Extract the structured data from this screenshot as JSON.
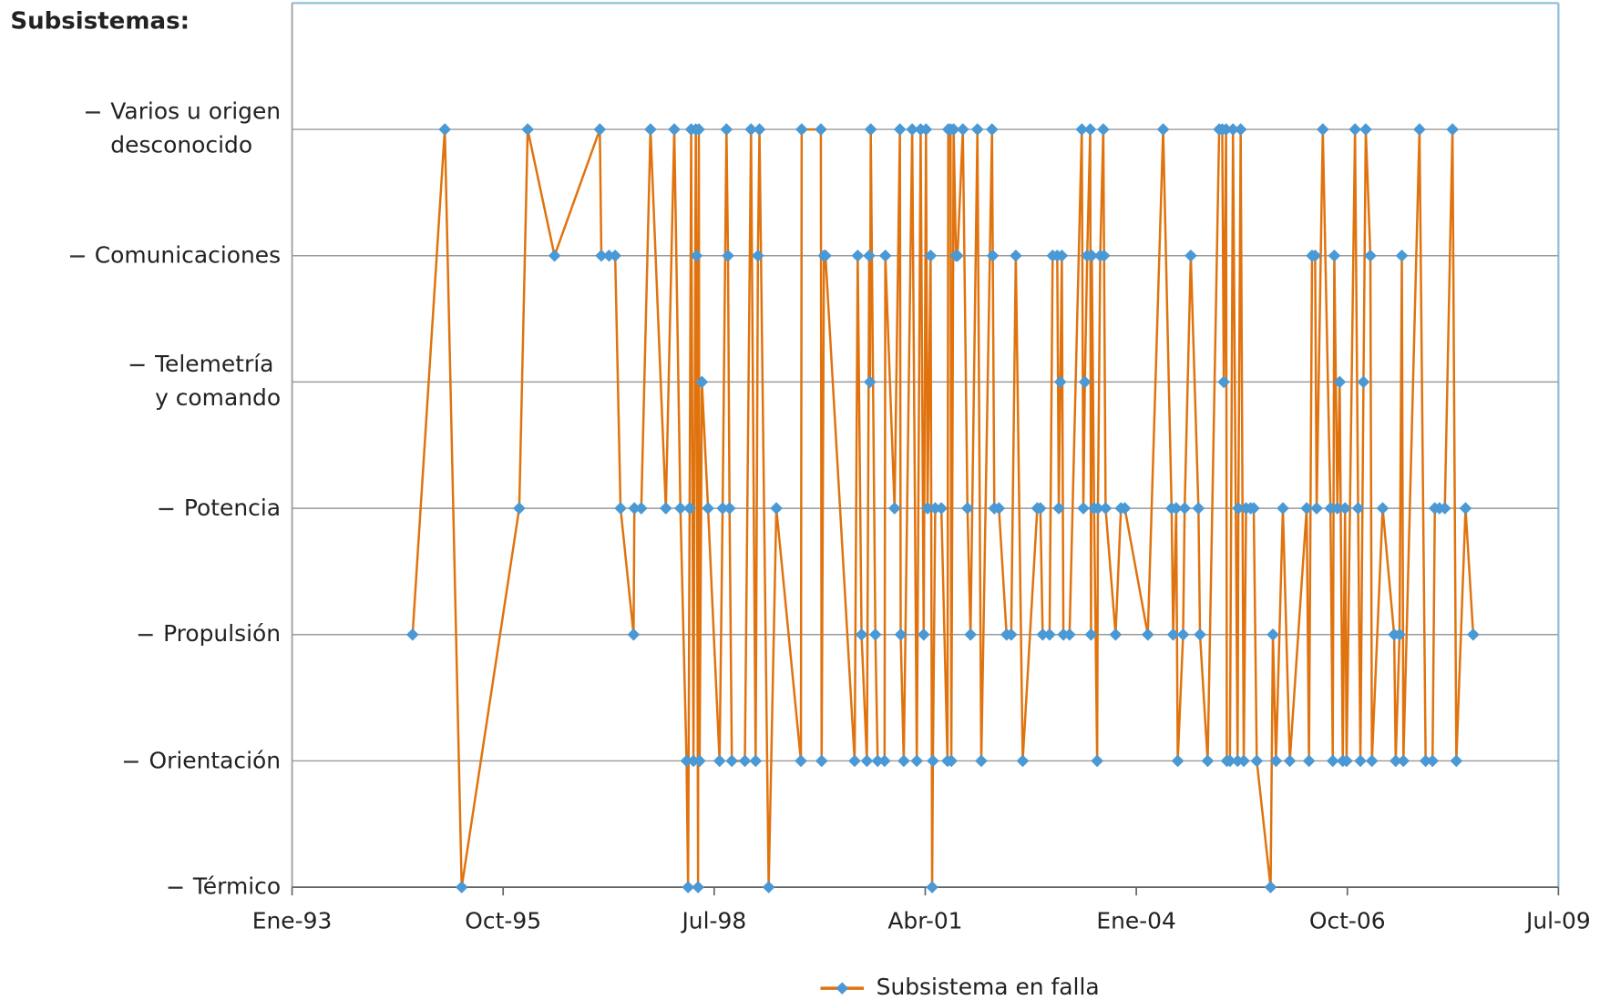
{
  "chart_data": {
    "type": "line",
    "title": "Subsistemas:",
    "x": [
      1994.57,
      1994.99,
      1995.21,
      1995.96,
      1996.07,
      1996.42,
      1997.01,
      1997.03,
      1997.13,
      1997.21,
      1997.28,
      1997.45,
      1997.46,
      1997.55,
      1997.67,
      1997.87,
      1997.98,
      1998.06,
      1998.14,
      1998.16,
      1998.18,
      1998.2,
      1998.23,
      1998.26,
      1998.27,
      1998.29,
      1998.3,
      1998.31,
      1998.34,
      1998.42,
      1998.57,
      1998.61,
      1998.66,
      1998.68,
      1998.7,
      1998.73,
      1998.9,
      1998.98,
      1999.04,
      1999.07,
      1999.09,
      1999.21,
      1999.31,
      1999.63,
      1999.64,
      1999.89,
      1999.9,
      1999.93,
      1999.95,
      2000.33,
      2000.37,
      2000.42,
      2000.49,
      2000.52,
      2000.53,
      2000.54,
      2000.6,
      2000.63,
      2000.72,
      2000.73,
      2000.85,
      2000.92,
      2000.93,
      2000.97,
      2001.08,
      2001.14,
      2001.19,
      2001.23,
      2001.26,
      2001.28,
      2001.32,
      2001.34,
      2001.35,
      2001.38,
      2001.46,
      2001.54,
      2001.55,
      2001.58,
      2001.59,
      2001.62,
      2001.65,
      2001.67,
      2001.74,
      2001.8,
      2001.84,
      2001.93,
      2001.98,
      2002.12,
      2002.13,
      2002.15,
      2002.21,
      2002.31,
      2002.37,
      2002.43,
      2002.52,
      2002.71,
      2002.75,
      2002.78,
      2002.87,
      2002.91,
      2002.97,
      2002.99,
      2003.01,
      2003.03,
      2003.05,
      2003.13,
      2003.29,
      2003.31,
      2003.33,
      2003.36,
      2003.4,
      2003.41,
      2003.42,
      2003.45,
      2003.49,
      2003.5,
      2003.53,
      2003.57,
      2003.58,
      2003.6,
      2003.73,
      2003.8,
      2003.85,
      2004.15,
      2004.35,
      2004.46,
      2004.48,
      2004.52,
      2004.54,
      2004.61,
      2004.63,
      2004.71,
      2004.81,
      2004.83,
      2004.93,
      2005.08,
      2005.12,
      2005.14,
      2005.17,
      2005.18,
      2005.22,
      2005.26,
      2005.32,
      2005.33,
      2005.36,
      2005.4,
      2005.43,
      2005.49,
      2005.53,
      2005.57,
      2005.75,
      2005.78,
      2005.82,
      2005.91,
      2006.0,
      2006.22,
      2006.25,
      2006.29,
      2006.33,
      2006.35,
      2006.43,
      2006.53,
      2006.56,
      2006.58,
      2006.62,
      2006.65,
      2006.69,
      2006.72,
      2006.74,
      2006.85,
      2006.89,
      2006.92,
      2006.96,
      2006.99,
      2007.05,
      2007.07,
      2007.21,
      2007.36,
      2007.38,
      2007.43,
      2007.46,
      2007.48,
      2007.69,
      2007.77,
      2007.86,
      2007.89,
      2007.95,
      2008.02,
      2008.12,
      2008.17,
      2008.29,
      2008.39
    ],
    "series": [
      {
        "name": "Subsistema en falla",
        "color": "#e0730e",
        "marker_color": "#4a98d4",
        "values": [
          3,
          7,
          1,
          4,
          7,
          6,
          7,
          6,
          6,
          6,
          4,
          3,
          4,
          4,
          7,
          4,
          7,
          4,
          2,
          1,
          4,
          7,
          2,
          7,
          6,
          1,
          7,
          2,
          5,
          4,
          2,
          4,
          7,
          6,
          4,
          2,
          2,
          7,
          2,
          6,
          7,
          1,
          4,
          2,
          7,
          7,
          2,
          6,
          6,
          2,
          6,
          3,
          2,
          6,
          5,
          7,
          3,
          2,
          2,
          6,
          4,
          7,
          3,
          2,
          7,
          2,
          7,
          3,
          7,
          4,
          6,
          1,
          2,
          4,
          4,
          2,
          7,
          7,
          2,
          7,
          6,
          6,
          7,
          4,
          3,
          7,
          2,
          7,
          6,
          4,
          4,
          3,
          3,
          6,
          2,
          4,
          4,
          3,
          3,
          6,
          6,
          4,
          5,
          6,
          3,
          3,
          7,
          4,
          5,
          6,
          7,
          3,
          6,
          4,
          2,
          4,
          6,
          7,
          6,
          4,
          3,
          4,
          4,
          3,
          7,
          4,
          3,
          4,
          2,
          3,
          4,
          6,
          4,
          3,
          2,
          7,
          7,
          5,
          7,
          2,
          2,
          7,
          2,
          4,
          7,
          2,
          4,
          4,
          4,
          2,
          1,
          3,
          2,
          4,
          2,
          4,
          2,
          6,
          6,
          4,
          7,
          4,
          2,
          6,
          4,
          5,
          2,
          4,
          2,
          7,
          4,
          2,
          5,
          7,
          6,
          2,
          4,
          3,
          2,
          3,
          6,
          2,
          7,
          2,
          2,
          4,
          4,
          4,
          7,
          2,
          4,
          3
        ]
      }
    ],
    "xlim": [
      1993,
      2009.5
    ],
    "xticks": [
      {
        "value": 1993,
        "label": "Ene-93"
      },
      {
        "value": 1995.75,
        "label": "Oct-95"
      },
      {
        "value": 1998.5,
        "label": "Jul-98"
      },
      {
        "value": 2001.25,
        "label": "Abr-01"
      },
      {
        "value": 2004,
        "label": "Ene-04"
      },
      {
        "value": 2006.75,
        "label": "Oct-06"
      },
      {
        "value": 2009.5,
        "label": "Jul-09"
      }
    ],
    "ylim": [
      1,
      8
    ],
    "yticks": [
      {
        "value": 1,
        "label": "Térmico"
      },
      {
        "value": 2,
        "label": "Orientación"
      },
      {
        "value": 3,
        "label": "Propulsión"
      },
      {
        "value": 4,
        "label": "Potencia"
      },
      {
        "value": 5,
        "label": "Telemetría\ny comando"
      },
      {
        "value": 6,
        "label": "Comunicaciones"
      },
      {
        "value": 7,
        "label": "Varios u origen\ndesconocido"
      }
    ],
    "grid": true,
    "legend": "bottom"
  }
}
